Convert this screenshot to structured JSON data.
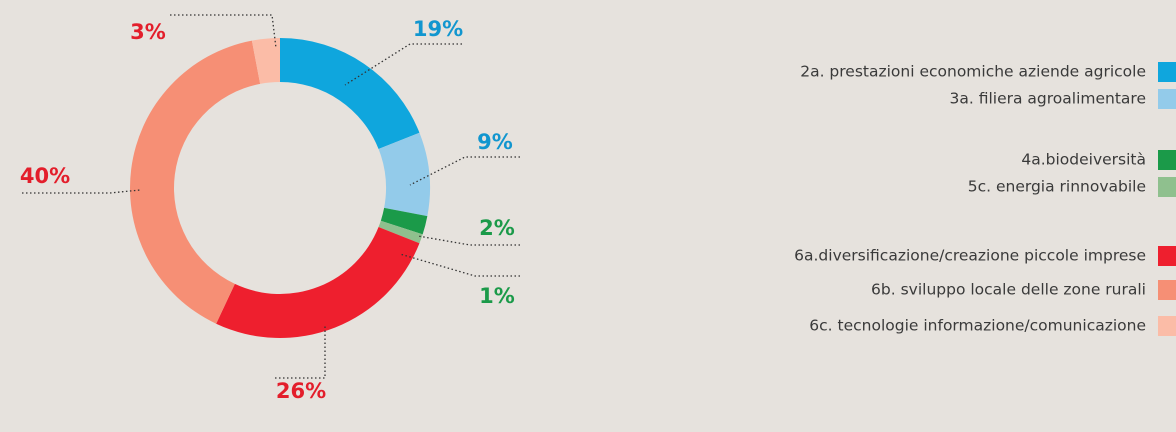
{
  "chart_data": {
    "type": "donut",
    "categories": [
      "2a. prestazioni economiche aziende agricole",
      "3a. filiera agroalimentare",
      "4a.biodeiversità",
      "5c. energia rinnovabile",
      "6a.diversificazione/creazione piccole imprese",
      "6b. sviluppo locale delle zone rurali",
      "6c. tecnologie informazione/comunicazione"
    ],
    "values": [
      19,
      9,
      2,
      1,
      26,
      40,
      3
    ],
    "value_labels": [
      "19%",
      "9%",
      "2%",
      "1%",
      "26%",
      "40%",
      "3%"
    ],
    "colors": [
      "#0fa6dd",
      "#93cbea",
      "#1b9a49",
      "#8fc08e",
      "#ee1f2e",
      "#f68f75",
      "#fbbca7"
    ]
  }
}
